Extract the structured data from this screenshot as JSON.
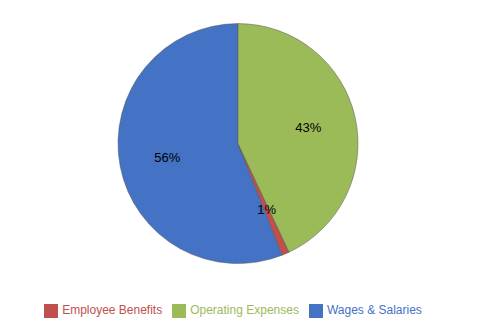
{
  "chart_data": {
    "type": "pie",
    "categories": [
      "Wages & Salaries",
      "Employee Benefits",
      "Operating Expenses"
    ],
    "values": [
      56,
      1,
      43
    ],
    "value_labels": [
      "56%",
      "1%",
      "43%"
    ],
    "colors": [
      "#4472C4",
      "#C0504D",
      "#9BBB59"
    ],
    "data_labels": true,
    "legend": "bottom"
  }
}
